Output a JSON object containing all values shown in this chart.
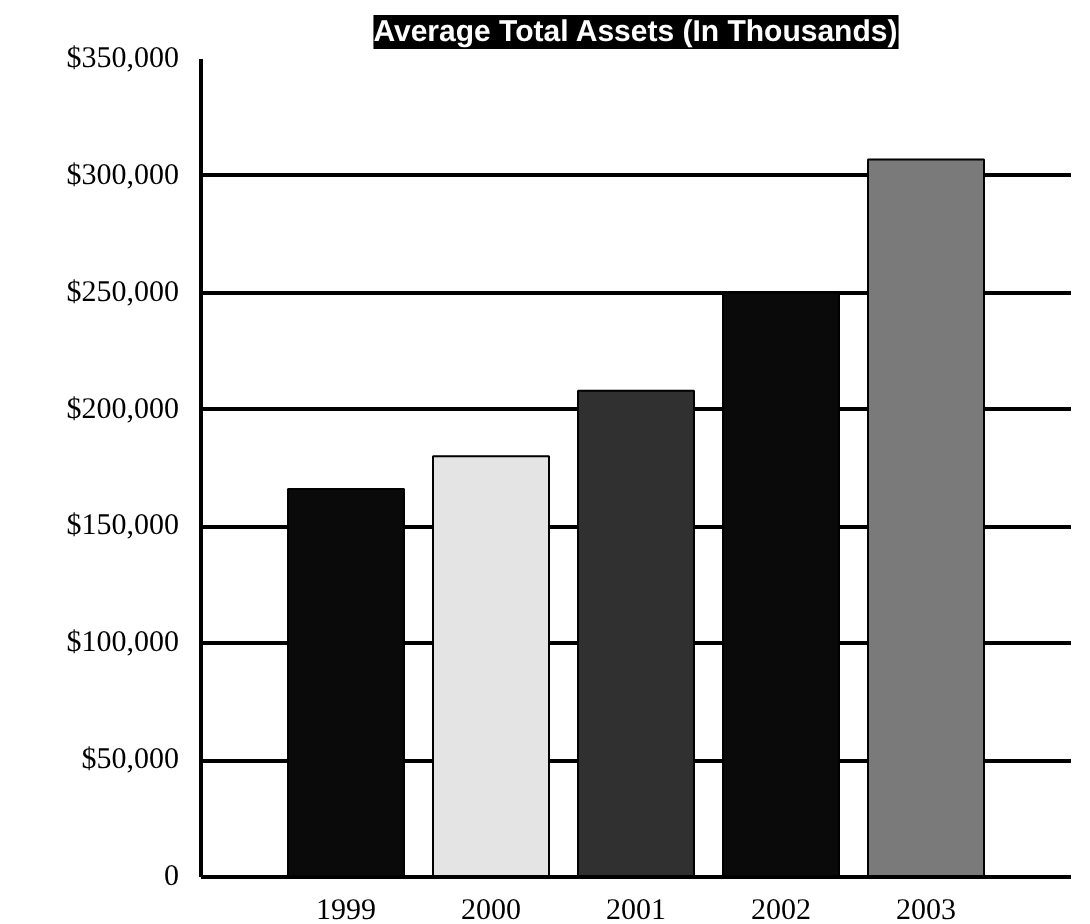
{
  "chart_data": {
    "type": "bar",
    "title": "Average Total Assets (In Thousands)",
    "categories": [
      "1999",
      "2000",
      "2001",
      "2002",
      "2003"
    ],
    "values": [
      166000,
      180000,
      208000,
      250000,
      307000
    ],
    "colors": [
      "#0a0a0a",
      "#e4e4e4",
      "#303030",
      "#0a0a0a",
      "#7a7a7a"
    ],
    "ylim": [
      0,
      350000
    ],
    "yticks": [
      {
        "value": 0,
        "label": "0"
      },
      {
        "value": 50000,
        "label": "$50,000"
      },
      {
        "value": 100000,
        "label": "$100,000"
      },
      {
        "value": 150000,
        "label": "$150,000"
      },
      {
        "value": 200000,
        "label": "$200,000"
      },
      {
        "value": 250000,
        "label": "$250,000"
      },
      {
        "value": 300000,
        "label": "$300,000"
      },
      {
        "value": 350000,
        "label": "$350,000"
      }
    ],
    "grid": "y"
  }
}
